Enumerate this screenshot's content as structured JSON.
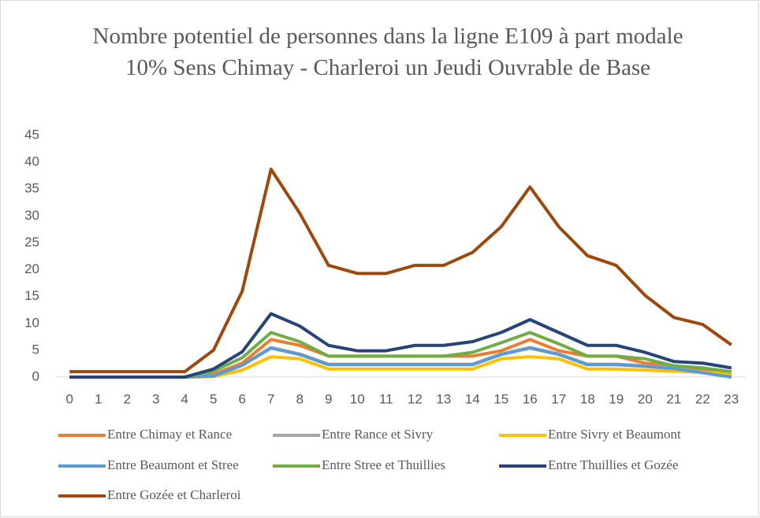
{
  "chart_data": {
    "type": "line",
    "title": "Nombre potentiel de personnes dans la ligne E109 à part modale 10% Sens Chimay - Charleroi un Jeudi Ouvrable de Base",
    "categories": [
      "0",
      "1",
      "2",
      "3",
      "4",
      "5",
      "6",
      "7",
      "8",
      "9",
      "10",
      "11",
      "12",
      "13",
      "14",
      "15",
      "16",
      "17",
      "18",
      "19",
      "20",
      "21",
      "22",
      "23"
    ],
    "ylim": [
      0,
      45
    ],
    "yticks": [
      0,
      5,
      10,
      15,
      20,
      25,
      30,
      35,
      40,
      45
    ],
    "grid": false,
    "legend": "bottom",
    "series": [
      {
        "name": "Entre Chimay et Rance",
        "color": "#ed7d31",
        "values": [
          0,
          0,
          0,
          0,
          0,
          0.5,
          2.6,
          7,
          5.9,
          3.9,
          3.9,
          3.9,
          3.9,
          3.9,
          3.9,
          4.9,
          7,
          4.9,
          3.9,
          3.9,
          2.6,
          2.1,
          1.3,
          0.5
        ]
      },
      {
        "name": "Entre Rance et Sivry",
        "color": "#a5a5a5",
        "values": [
          0,
          0,
          0,
          0,
          0,
          0.3,
          2.2,
          5.5,
          4.3,
          2.4,
          2.4,
          2.4,
          2.4,
          2.4,
          2.4,
          4.3,
          5.5,
          4.3,
          2.4,
          2.4,
          2.1,
          1.7,
          0.9,
          0.3
        ]
      },
      {
        "name": "Entre Sivry et Beaumont",
        "color": "#ffc000",
        "values": [
          0,
          0,
          0,
          0,
          0,
          0.1,
          1.3,
          3.8,
          3.4,
          1.5,
          1.5,
          1.5,
          1.5,
          1.5,
          1.5,
          3.4,
          3.8,
          3.4,
          1.5,
          1.5,
          1.3,
          1.1,
          0.9,
          0.6
        ]
      },
      {
        "name": "Entre Beaumont et Stree",
        "color": "#5b9bd5",
        "values": [
          0,
          0,
          0,
          0,
          0,
          0.2,
          2.2,
          5.4,
          4.2,
          2.3,
          2.3,
          2.3,
          2.3,
          2.3,
          2.3,
          4.2,
          5.4,
          4.2,
          2.3,
          2.3,
          2,
          1.6,
          0.8,
          0
        ]
      },
      {
        "name": "Entre Stree et Thuillies",
        "color": "#70ad47",
        "values": [
          0,
          0,
          0,
          0,
          0,
          1.1,
          3.6,
          8.3,
          6.6,
          3.9,
          3.9,
          3.9,
          3.9,
          3.9,
          4.6,
          6.4,
          8.3,
          6.2,
          3.9,
          3.9,
          3.4,
          2.1,
          1.7,
          1
        ]
      },
      {
        "name": "Entre Thuillies et Gozée",
        "color": "#264478",
        "values": [
          0,
          0,
          0,
          0,
          0,
          1.5,
          4.7,
          11.8,
          9.5,
          5.9,
          4.9,
          4.9,
          5.9,
          5.9,
          6.6,
          8.3,
          10.7,
          8.3,
          5.9,
          5.9,
          4.6,
          2.9,
          2.6,
          1.7
        ]
      },
      {
        "name": "Entre Gozée et Charleroi",
        "color": "#9e480e",
        "values": [
          1,
          1,
          1,
          1,
          1,
          5,
          16,
          38.7,
          30.5,
          20.8,
          19.3,
          19.3,
          20.8,
          20.8,
          23.2,
          28,
          35.4,
          28,
          22.6,
          20.8,
          15.2,
          11.1,
          9.8,
          6
        ]
      }
    ]
  }
}
